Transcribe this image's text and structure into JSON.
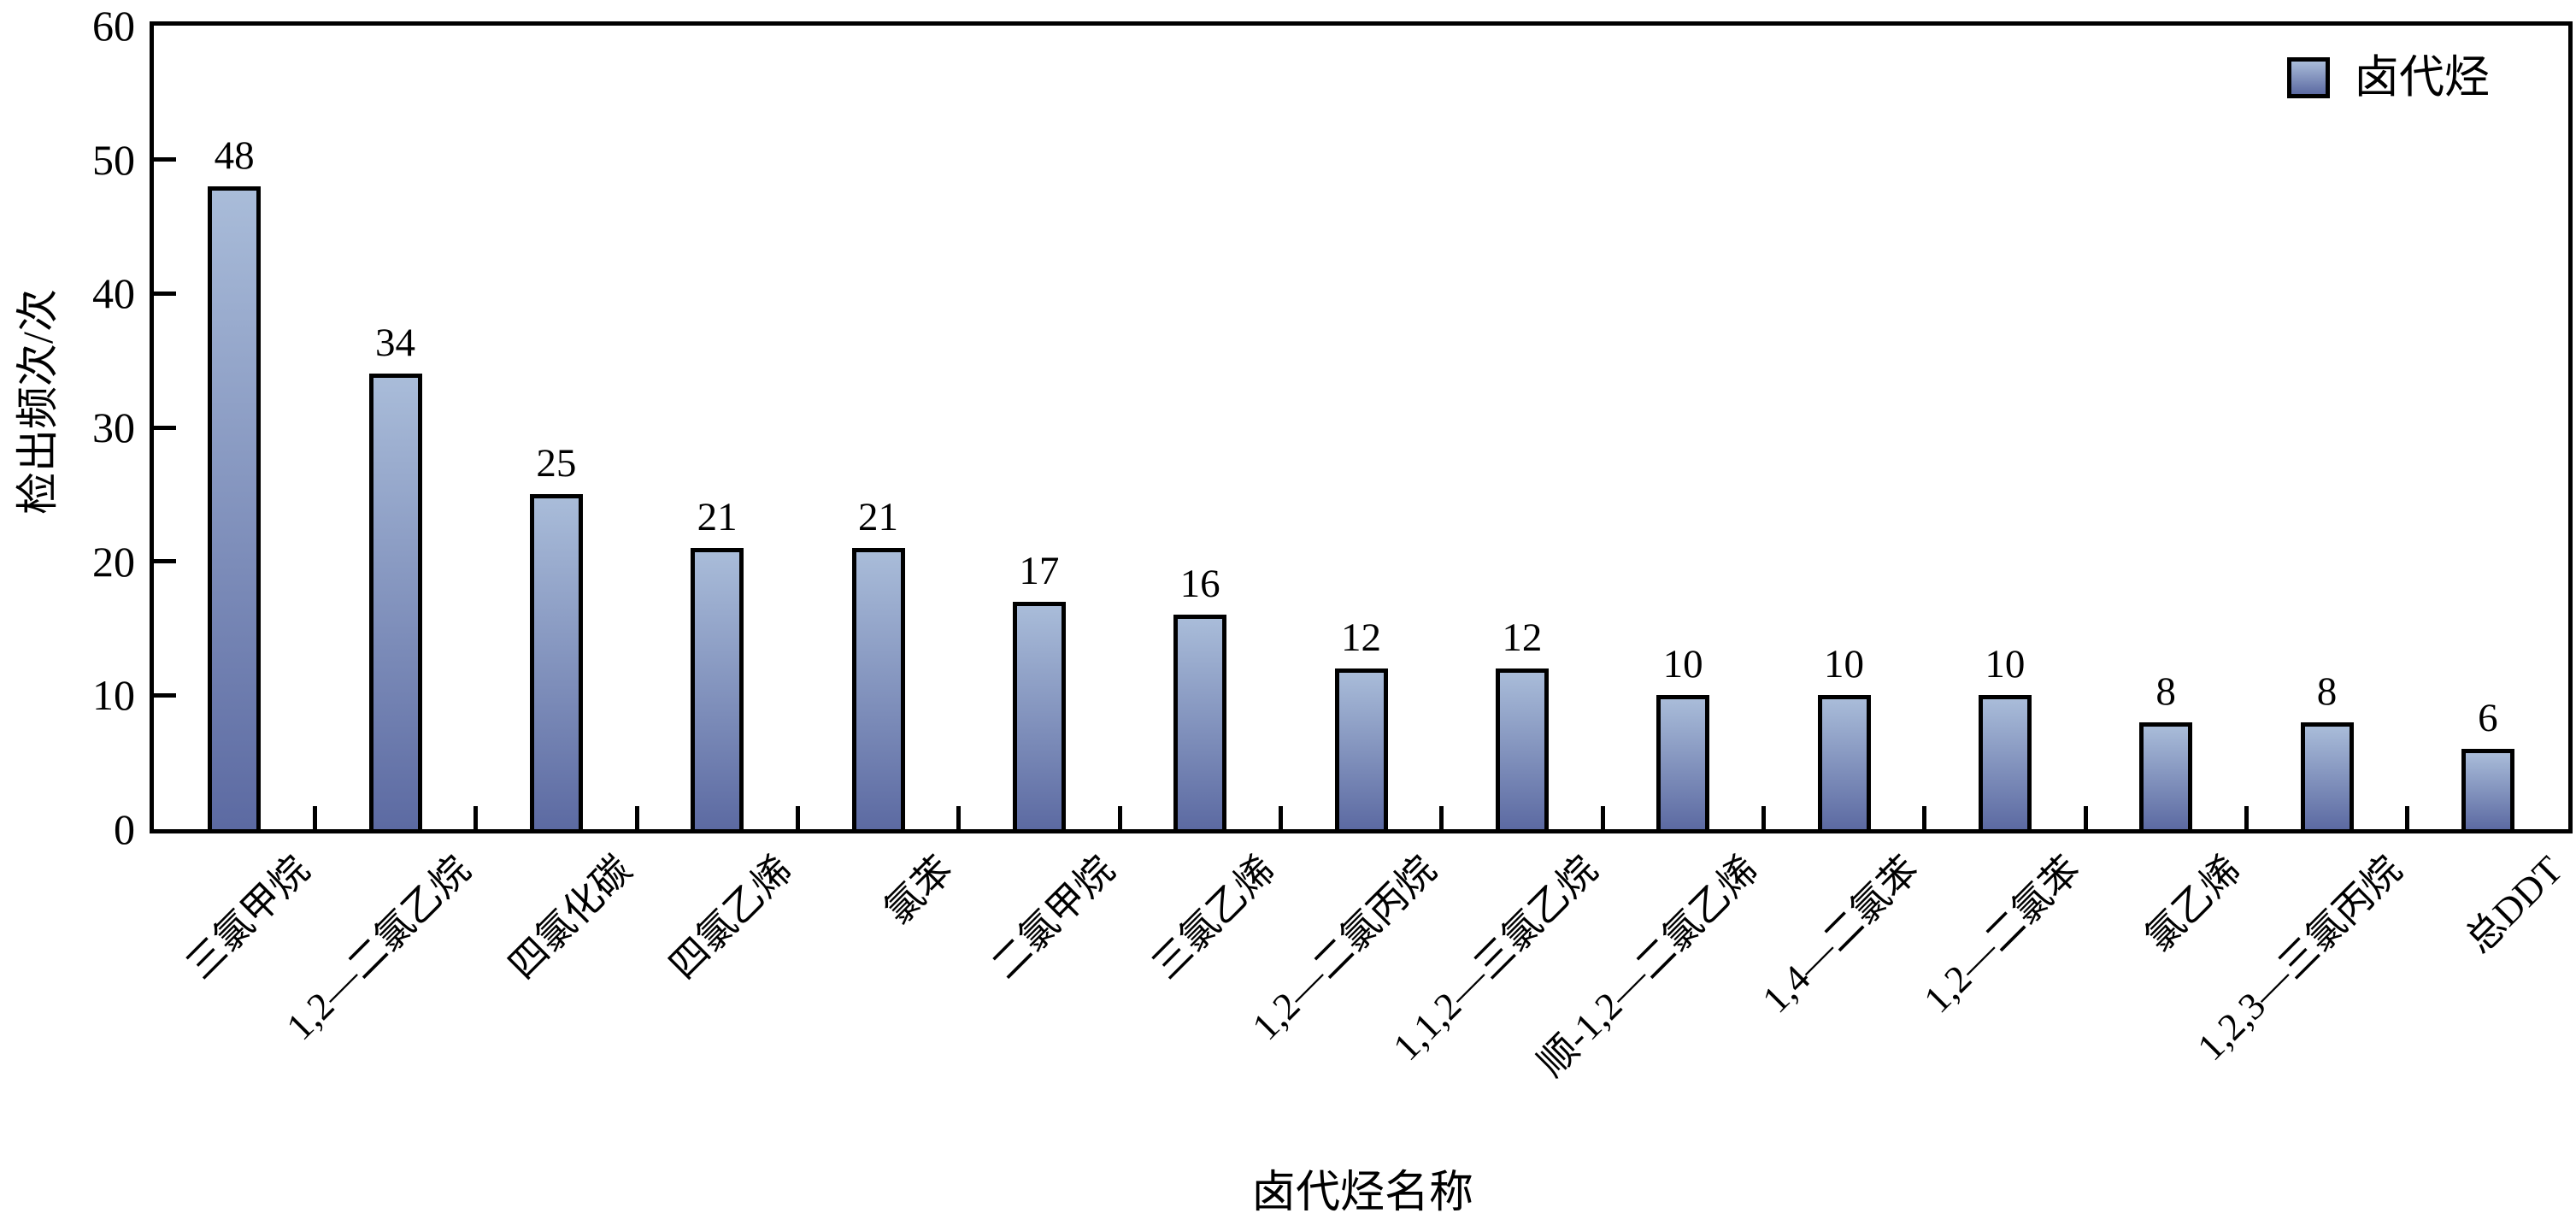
{
  "chart_data": {
    "type": "bar",
    "title": "",
    "xlabel": "卤代烃名称",
    "ylabel": "检出频次/次",
    "legend": [
      "卤代烃"
    ],
    "legend_position": "top-right-inside",
    "grid": false,
    "ylim": [
      0,
      60
    ],
    "yticks": [
      0,
      10,
      20,
      30,
      40,
      50,
      60
    ],
    "categories": [
      "三氯甲烷",
      "1,2—二氯乙烷",
      "四氯化碳",
      "四氯乙烯",
      "氯苯",
      "二氯甲烷",
      "三氯乙烯",
      "1,2—二氯丙烷",
      "1,1,2—三氯乙烷",
      "顺-1,2—二氯乙烯",
      "1,4—二氯苯",
      "1,2—二氯苯",
      "氯乙烯",
      "1,2,3—三氯丙烷",
      "总DDT"
    ],
    "values": [
      48,
      34,
      25,
      21,
      21,
      17,
      16,
      12,
      12,
      10,
      10,
      10,
      8,
      8,
      6
    ],
    "data_labels_shown": true,
    "colors": {
      "bar_gradient_top": "#a9bcd9",
      "bar_gradient_bottom": "#5c6aa2",
      "bar_outline": "#000000",
      "axis": "#000000",
      "text": "#000000",
      "background": "#ffffff"
    }
  }
}
